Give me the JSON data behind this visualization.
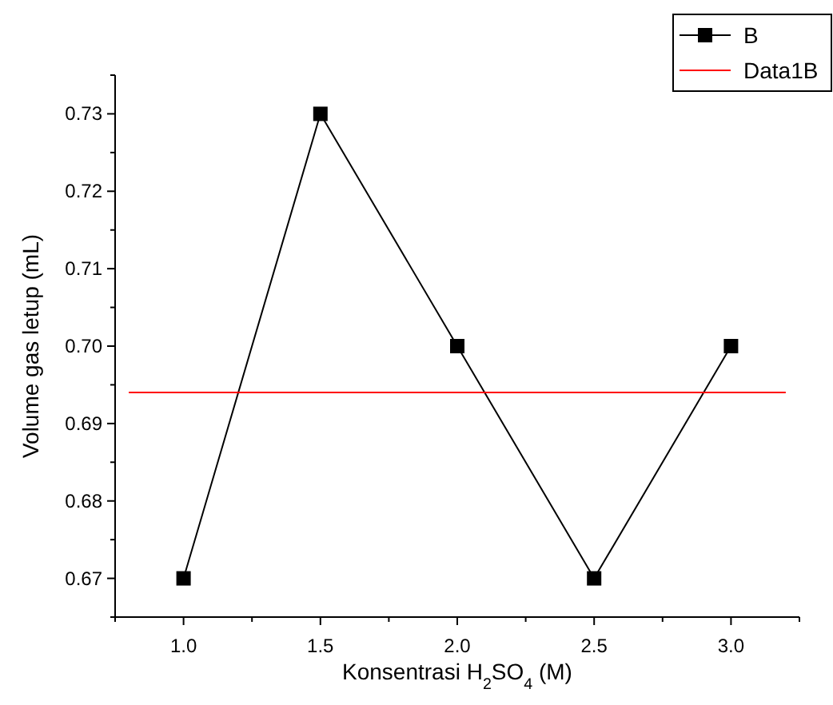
{
  "chart_data": {
    "type": "line",
    "xlabel": "Konsentrasi H$_{2}$SO$_{4}$ (M)",
    "ylabel": "Volume gas letup (mL)",
    "x": [
      1.0,
      1.5,
      2.0,
      2.5,
      3.0
    ],
    "series": [
      {
        "name": "B",
        "color": "#000000",
        "values": [
          0.67,
          0.73,
          0.7,
          0.67,
          0.7
        ],
        "marker": "square"
      },
      {
        "name": "Data1B",
        "color": "#ff0000",
        "x": [
          0.8,
          3.2
        ],
        "values": [
          0.694,
          0.694
        ],
        "marker": "none"
      }
    ],
    "xlim": [
      0.75,
      3.25
    ],
    "xticks": [
      {
        "value": 0.75,
        "label": null
      },
      {
        "value": 1.0,
        "label": "1.0"
      },
      {
        "value": 1.25,
        "label": null
      },
      {
        "value": 1.5,
        "label": "1.5"
      },
      {
        "value": 1.75,
        "label": null
      },
      {
        "value": 2.0,
        "label": "2.0"
      },
      {
        "value": 2.25,
        "label": null
      },
      {
        "value": 2.5,
        "label": "2.5"
      },
      {
        "value": 2.75,
        "label": null
      },
      {
        "value": 3.0,
        "label": "3.0"
      },
      {
        "value": 3.25,
        "label": null
      }
    ],
    "ylim": [
      0.665,
      0.735
    ],
    "yticks": [
      {
        "value": 0.665,
        "label": null
      },
      {
        "value": 0.67,
        "label": "0.67"
      },
      {
        "value": 0.675,
        "label": null
      },
      {
        "value": 0.68,
        "label": "0.68"
      },
      {
        "value": 0.685,
        "label": null
      },
      {
        "value": 0.69,
        "label": "0.69"
      },
      {
        "value": 0.695,
        "label": null
      },
      {
        "value": 0.7,
        "label": "0.70"
      },
      {
        "value": 0.705,
        "label": null
      },
      {
        "value": 0.71,
        "label": "0.71"
      },
      {
        "value": 0.715,
        "label": null
      },
      {
        "value": 0.72,
        "label": "0.72"
      },
      {
        "value": 0.725,
        "label": null
      },
      {
        "value": 0.73,
        "label": "0.73"
      },
      {
        "value": 0.735,
        "label": null
      }
    ],
    "grid": false,
    "legend": "top right",
    "line_style": "solid"
  }
}
